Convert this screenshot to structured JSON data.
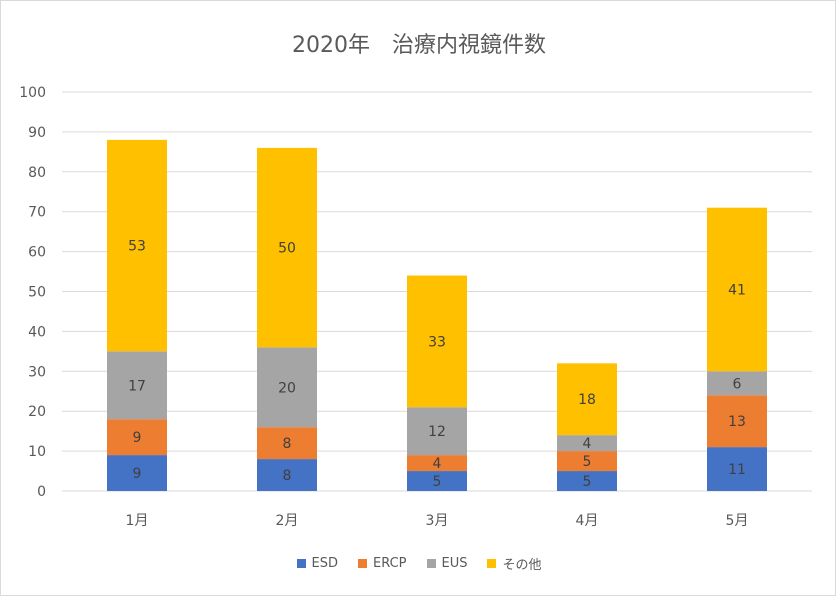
{
  "chart_data": {
    "type": "bar",
    "stacked": true,
    "title": "2020年　治療内視鏡件数",
    "xlabel": "",
    "ylabel": "",
    "categories": [
      "1月",
      "2月",
      "3月",
      "4月",
      "5月"
    ],
    "ylim": [
      0,
      100
    ],
    "yticks": [
      "0",
      "10",
      "20",
      "30",
      "40",
      "50",
      "60",
      "70",
      "80",
      "90",
      "100"
    ],
    "grid": true,
    "legend_position": "bottom",
    "series": [
      {
        "name": "ESD",
        "color": "#4472c4",
        "values": [
          9,
          8,
          5,
          5,
          11
        ]
      },
      {
        "name": "ERCP",
        "color": "#ed7d31",
        "values": [
          9,
          8,
          4,
          5,
          13
        ]
      },
      {
        "name": "EUS",
        "color": "#a5a5a5",
        "values": [
          17,
          20,
          12,
          4,
          6
        ]
      },
      {
        "name": "その他",
        "color": "#ffc000",
        "values": [
          53,
          50,
          33,
          18,
          41
        ]
      }
    ]
  }
}
